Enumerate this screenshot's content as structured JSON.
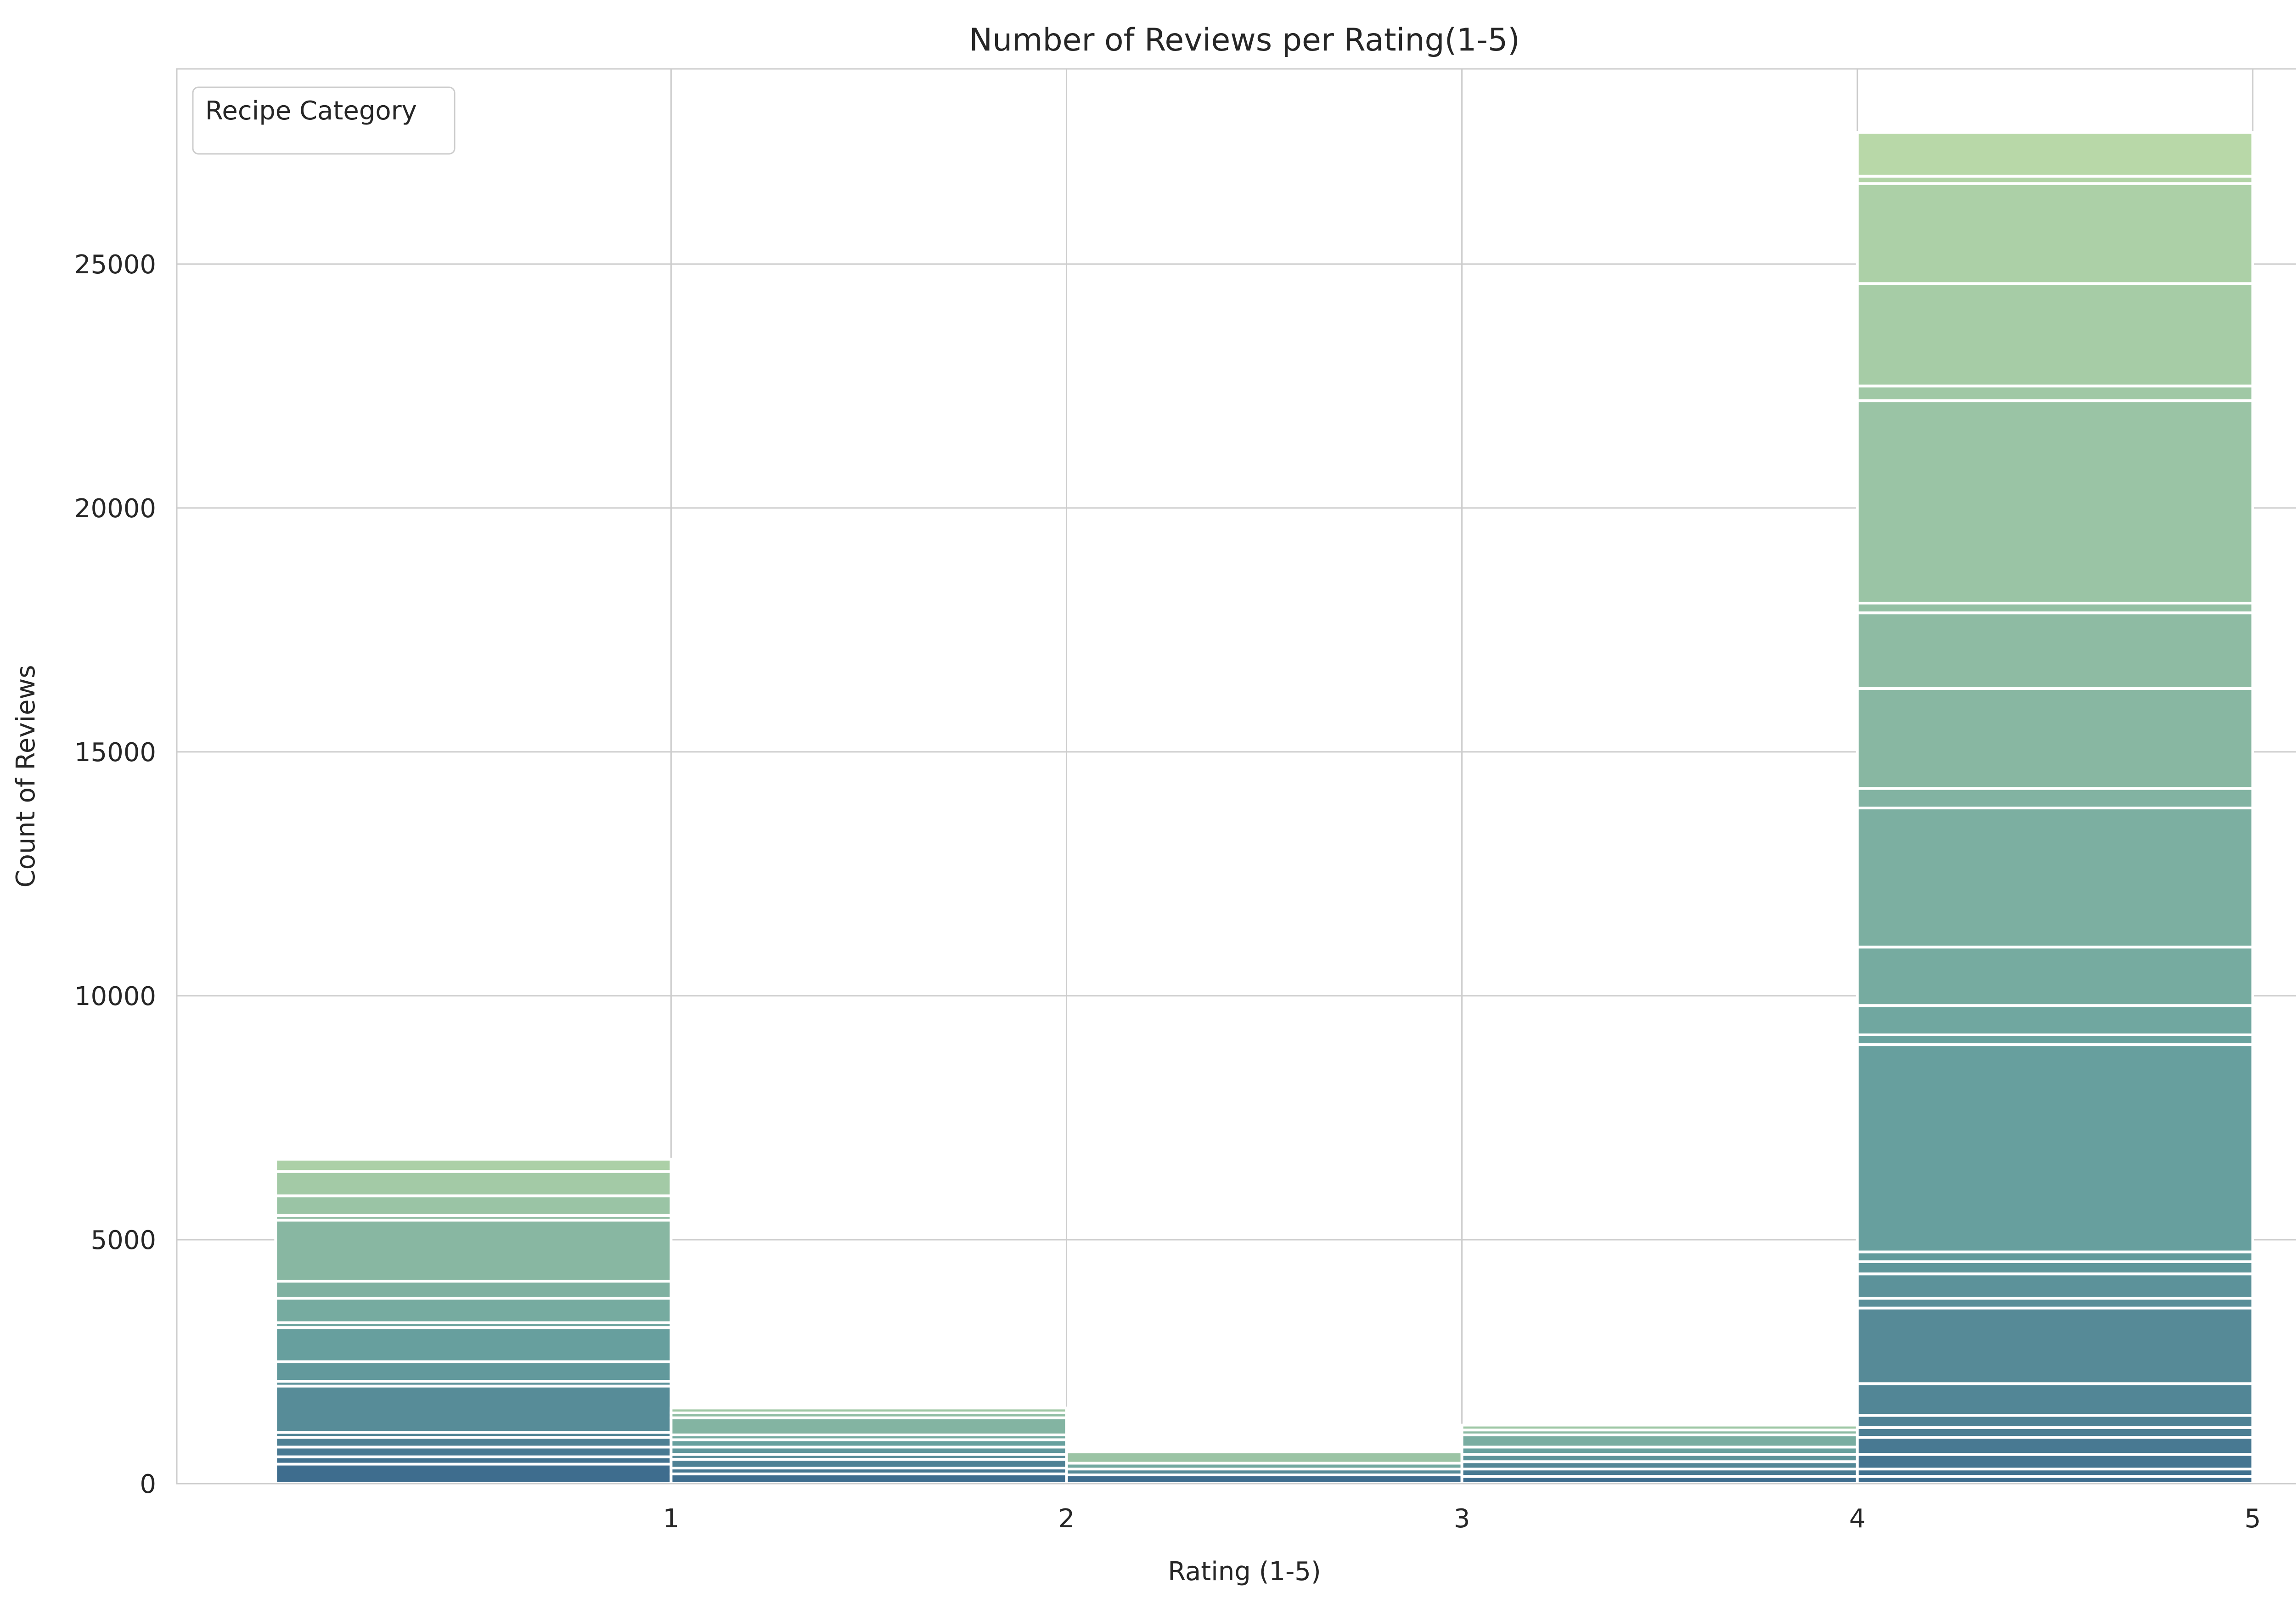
{
  "chart_data": {
    "type": "bar",
    "title": "Number of Reviews per Rating(1-5)",
    "xlabel": "Rating (1-5)",
    "ylabel": "Count of Reviews",
    "xlim": [
      -0.25,
      5.15
    ],
    "ylim": [
      0,
      29000
    ],
    "xticks": [
      1,
      2,
      3,
      4,
      5
    ],
    "yticks": [
      0,
      5000,
      10000,
      15000,
      20000,
      25000
    ],
    "grid": true,
    "legend": {
      "title": "Recipe Category",
      "placement": "top-left",
      "entries": []
    },
    "bins": [
      {
        "x0": 0,
        "x1": 1,
        "total": 6650,
        "stack": [
          400,
          550,
          750,
          950,
          1050,
          2000,
          2100,
          2500,
          3200,
          3300,
          3800,
          4150,
          5400,
          5500,
          5900,
          6400,
          6650
        ]
      },
      {
        "x0": 1,
        "x1": 2,
        "total": 1550,
        "stack": [
          200,
          320,
          500,
          600,
          750,
          900,
          1000,
          1350,
          1450,
          1550
        ]
      },
      {
        "x0": 2,
        "x1": 3,
        "total": 650,
        "stack": [
          180,
          300,
          420,
          650
        ]
      },
      {
        "x0": 3,
        "x1": 4,
        "total": 1200,
        "stack": [
          150,
          300,
          450,
          600,
          750,
          1000,
          1100,
          1200
        ]
      },
      {
        "x0": 4,
        "x1": 5,
        "total": 27700,
        "stack": [
          150,
          300,
          600,
          950,
          1150,
          1400,
          2050,
          3600,
          3800,
          4300,
          4550,
          4750,
          9000,
          9200,
          9800,
          11000,
          13850,
          14250,
          16300,
          17850,
          18050,
          22200,
          22500,
          24600,
          26650,
          26800,
          27700
        ]
      }
    ],
    "colors": {
      "base": "#3e6d8e",
      "mid": "#6aa39f",
      "top": "#b8d8a8",
      "segment_edge": "#ffffff",
      "grid": "#cccccc",
      "frame": "#cccccc"
    }
  }
}
